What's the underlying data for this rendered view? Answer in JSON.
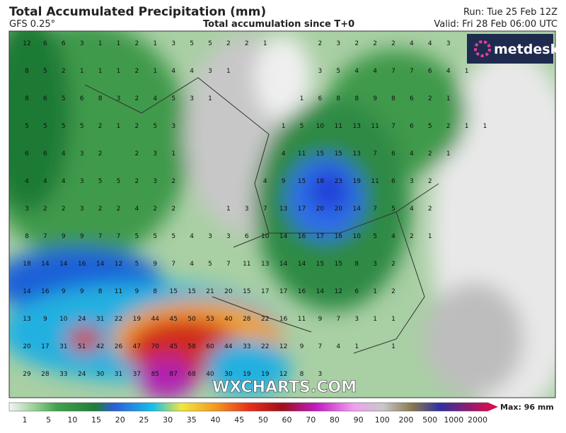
{
  "header": {
    "title": "Total Accumulated Precipitation (mm)",
    "model": "GFS 0.25°",
    "subtitle": "Total accumulation since T+0",
    "run": "Run: Tue 25 Feb 12Z",
    "valid": "Valid: Fri 28 Feb 06:00 UTC"
  },
  "logo": "metdesk",
  "watermark": "WXCHARTS.COM",
  "grid": {
    "rows": [
      [
        12,
        6,
        6,
        3,
        1,
        1,
        2,
        1,
        3,
        5,
        5,
        2,
        2,
        1,
        null,
        null,
        2,
        3,
        2,
        2,
        2,
        4,
        4,
        3,
        null,
        null
      ],
      [
        8,
        5,
        2,
        1,
        1,
        1,
        2,
        1,
        4,
        4,
        3,
        1,
        null,
        null,
        null,
        null,
        3,
        5,
        4,
        4,
        7,
        7,
        6,
        4,
        1,
        null
      ],
      [
        8,
        6,
        5,
        6,
        8,
        3,
        2,
        4,
        5,
        3,
        1,
        null,
        null,
        null,
        null,
        1,
        6,
        8,
        8,
        9,
        8,
        6,
        2,
        1,
        null,
        null
      ],
      [
        5,
        5,
        5,
        5,
        2,
        1,
        2,
        5,
        3,
        null,
        null,
        null,
        null,
        null,
        1,
        5,
        10,
        11,
        13,
        11,
        7,
        6,
        5,
        2,
        1,
        1
      ],
      [
        6,
        6,
        4,
        3,
        2,
        null,
        2,
        3,
        1,
        null,
        null,
        null,
        null,
        null,
        4,
        11,
        15,
        15,
        13,
        7,
        6,
        4,
        2,
        1,
        null,
        null
      ],
      [
        4,
        4,
        4,
        3,
        5,
        5,
        2,
        3,
        2,
        null,
        null,
        null,
        null,
        4,
        9,
        15,
        18,
        23,
        19,
        11,
        6,
        3,
        2,
        null,
        null,
        null
      ],
      [
        3,
        2,
        2,
        3,
        2,
        2,
        4,
        2,
        2,
        null,
        null,
        1,
        3,
        7,
        13,
        17,
        20,
        20,
        14,
        7,
        5,
        4,
        2,
        null,
        null,
        null
      ],
      [
        8,
        7,
        9,
        9,
        7,
        7,
        5,
        5,
        5,
        4,
        3,
        3,
        6,
        10,
        14,
        16,
        17,
        16,
        10,
        5,
        4,
        2,
        1,
        null,
        null,
        null
      ],
      [
        18,
        14,
        14,
        16,
        14,
        12,
        5,
        9,
        7,
        4,
        5,
        7,
        11,
        13,
        14,
        14,
        15,
        15,
        8,
        3,
        2,
        null,
        null,
        null,
        null,
        null
      ],
      [
        14,
        16,
        9,
        9,
        8,
        11,
        9,
        8,
        15,
        15,
        21,
        20,
        15,
        17,
        17,
        16,
        14,
        12,
        6,
        1,
        2,
        null,
        null,
        null,
        null,
        null
      ],
      [
        13,
        9,
        10,
        24,
        31,
        22,
        19,
        44,
        45,
        50,
        53,
        40,
        28,
        22,
        16,
        11,
        9,
        7,
        3,
        1,
        1,
        null,
        null,
        null,
        null,
        null
      ],
      [
        20,
        17,
        31,
        51,
        42,
        26,
        47,
        70,
        45,
        58,
        60,
        44,
        33,
        22,
        12,
        9,
        7,
        4,
        1,
        null,
        1,
        null,
        null,
        null,
        null,
        null
      ],
      [
        29,
        28,
        33,
        24,
        30,
        31,
        37,
        85,
        87,
        68,
        40,
        30,
        19,
        19,
        12,
        8,
        3,
        null,
        null,
        null,
        null,
        null,
        null,
        null,
        null,
        null
      ]
    ]
  },
  "colorbar": {
    "labels": [
      1,
      5,
      10,
      15,
      20,
      25,
      30,
      35,
      40,
      45,
      50,
      60,
      70,
      80,
      90,
      100,
      200,
      500,
      1000,
      2000
    ],
    "max": "Max: 96 mm"
  }
}
